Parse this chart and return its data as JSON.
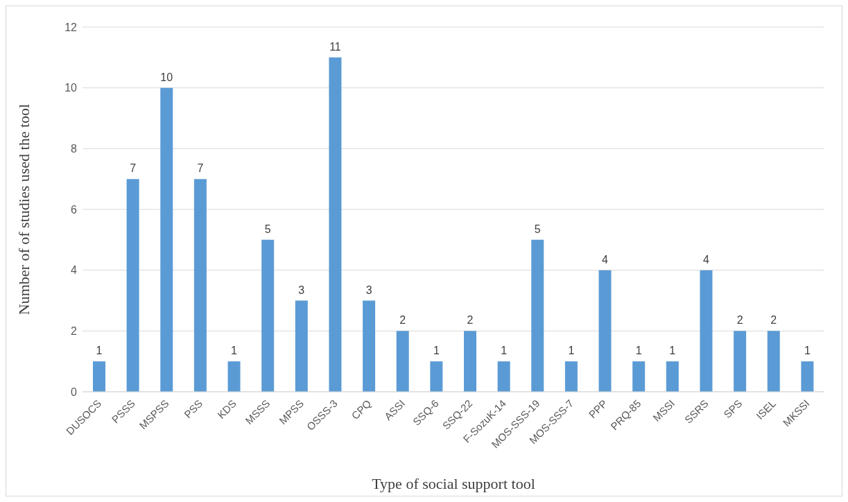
{
  "chart_data": {
    "type": "bar",
    "xlabel": "Type of social support tool",
    "ylabel": "Number of of studies used the tool",
    "categories": [
      "DUSOCS",
      "PSSS",
      "MSPSS",
      "PSS",
      "KDS",
      "MSSS",
      "MPSS",
      "OSSS-3",
      "CPQ",
      "ASSI",
      "SSQ-6",
      "SSQ-22",
      "F-SozuK-14",
      "MOS-SSS-19",
      "MOS-SSS-7",
      "PPP",
      "PRQ-85",
      "MSSI",
      "SSRS",
      "SPS",
      "ISEL",
      "MKSSI"
    ],
    "values": [
      1,
      7,
      10,
      7,
      1,
      5,
      3,
      11,
      3,
      2,
      1,
      2,
      1,
      5,
      1,
      4,
      1,
      1,
      4,
      2,
      2,
      1
    ],
    "color": "#5b9bd5",
    "ylim": [
      0,
      12
    ],
    "yticks": [
      0,
      2,
      4,
      6,
      8,
      10,
      12
    ],
    "grid": "y",
    "data_labels": true,
    "legend": false
  }
}
